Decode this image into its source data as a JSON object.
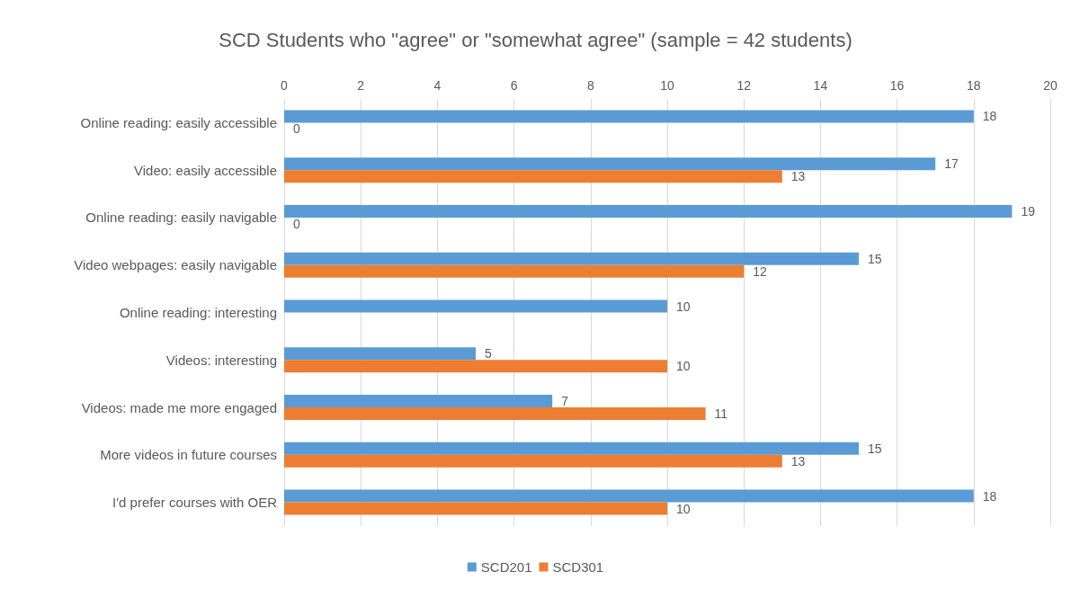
{
  "chart_data": {
    "type": "bar",
    "orientation": "horizontal",
    "title": "SCD Students who \"agree\" or \"somewhat agree\" (sample = 42 students)",
    "categories": [
      "Online reading: easily accessible",
      "Video: easily accessible",
      "Online reading: easily navigable",
      "Video webpages: easily navigable",
      "Online reading: interesting",
      "Videos: interesting",
      "Videos: made me more engaged",
      "More videos in future courses",
      "I'd prefer courses with OER"
    ],
    "series": [
      {
        "name": "SCD201",
        "color": "#5b9bd5",
        "values": [
          18,
          17,
          19,
          15,
          10,
          5,
          7,
          15,
          18
        ]
      },
      {
        "name": "SCD301",
        "color": "#ed7d31",
        "values": [
          0,
          13,
          0,
          12,
          null,
          10,
          11,
          13,
          10
        ]
      }
    ],
    "xlim": [
      0,
      20
    ],
    "xticks": [
      0,
      2,
      4,
      6,
      8,
      10,
      12,
      14,
      16,
      18,
      20
    ],
    "grid": "x",
    "legend": "bottom",
    "data_labels": true
  }
}
